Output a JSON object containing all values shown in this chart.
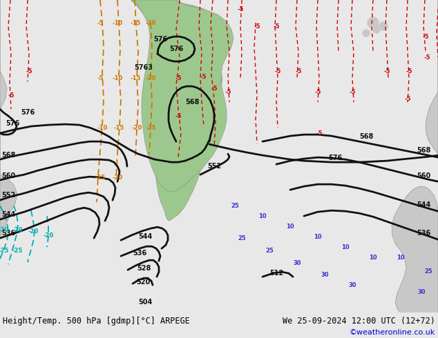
{
  "title_left": "Height/Temp. 500 hPa [gdmp][°C] ARPEGE",
  "title_right": "We 25-09-2024 12:00 UTC (12+72)",
  "credit": "©weatheronline.co.uk",
  "bg_color": "#e8e8e8",
  "map_bg": "#c8dce8",
  "land_green": "#9dc88d",
  "land_gray": "#c8c8c8",
  "credit_color": "#0000cc",
  "figsize": [
    6.34,
    4.9
  ],
  "dpi": 100
}
